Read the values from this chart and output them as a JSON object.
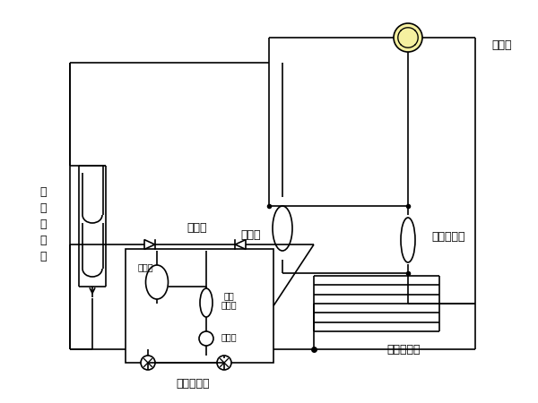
{
  "bg_color": "#ffffff",
  "lc": "#000000",
  "lw": 1.2,
  "fwv_color": "#f5f0a0",
  "labels": {
    "water_side_hx": [
      "水",
      "侧",
      "换",
      "热",
      "器"
    ],
    "compressor": "压缩机",
    "gas_liquid_sep": "气液分离器",
    "four_way_valve": "四通阀",
    "air_side_hx": "风侧换热器",
    "check_valve": "单向阀",
    "thermo_exp": "热力膨胀阀",
    "liquid_storage": "储液罐",
    "dry_filter": "干燥\n过滤器",
    "sight_glass": "视液镜"
  },
  "figsize": [
    6.0,
    4.5
  ],
  "dpi": 100
}
